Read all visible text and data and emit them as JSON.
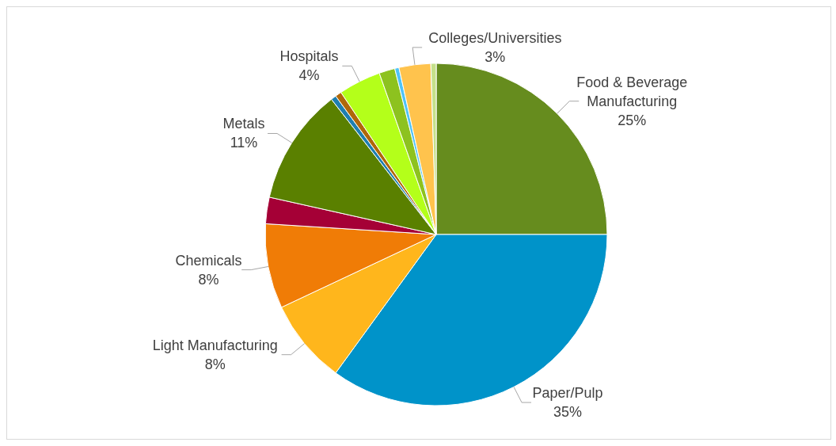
{
  "chart_data": {
    "type": "pie",
    "categories": [
      "Food & Beverage Manufacturing",
      "Paper/Pulp",
      "Light Manufacturing",
      "Chemicals",
      null,
      "Metals",
      null,
      null,
      "Hospitals",
      null,
      null,
      "Colleges/Universities",
      null
    ],
    "values": [
      25,
      35,
      8,
      8,
      2.5,
      11,
      0.5,
      0.6,
      4,
      1.5,
      0.4,
      3,
      0.5
    ],
    "value_labels": [
      "25%",
      "35%",
      "8%",
      "8%",
      null,
      "11%",
      null,
      null,
      "4%",
      null,
      null,
      "3%",
      null
    ],
    "colors": [
      "#668c1e",
      "#0093c9",
      "#ffb61c",
      "#f07c06",
      "#a50036",
      "#5a8000",
      "#1f7fb0",
      "#b0670a",
      "#b4ff1a",
      "#8dc21f",
      "#4fc3f7",
      "#ffc34d",
      "#c5e08a"
    ],
    "legend": false
  }
}
